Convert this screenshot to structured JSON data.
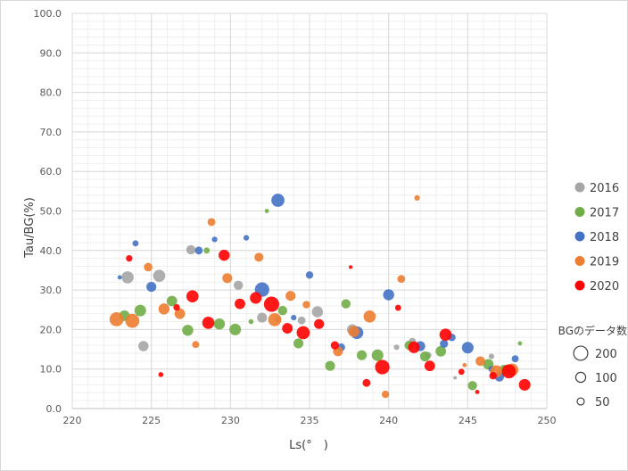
{
  "chart_data": {
    "type": "scatter",
    "xlabel": "Ls(°　)",
    "ylabel": "Tau/BG(%)",
    "xlim": [
      220,
      250
    ],
    "ylim": [
      0,
      100
    ],
    "x_ticks": [
      "220",
      "225",
      "230",
      "235",
      "240",
      "245",
      "250"
    ],
    "y_ticks": [
      "0.0",
      "10.0",
      "20.0",
      "30.0",
      "40.0",
      "50.0",
      "60.0",
      "70.0",
      "80.0",
      "90.0",
      "100.0"
    ],
    "grid": true,
    "legend_position": "right",
    "size_legend": {
      "title": "BGのデータ数",
      "entries": [
        {
          "label": "200",
          "value": 200
        },
        {
          "label": "100",
          "value": 100
        },
        {
          "label": "50",
          "value": 50
        }
      ]
    },
    "series": [
      {
        "name": "2016",
        "color": "#a5a5a5",
        "points": [
          [
            223.5,
            33.2,
            120
          ],
          [
            224.5,
            15.8,
            85
          ],
          [
            225.5,
            33.6,
            120
          ],
          [
            227.5,
            40.2,
            70
          ],
          [
            230.5,
            31.2,
            70
          ],
          [
            232,
            23,
            80
          ],
          [
            233,
            22.5,
            30
          ],
          [
            234.5,
            22.3,
            50
          ],
          [
            235.5,
            24.5,
            100
          ],
          [
            237.7,
            20,
            90
          ],
          [
            240.5,
            15.5,
            25
          ],
          [
            241.5,
            17,
            40
          ],
          [
            242.5,
            13.5,
            35
          ],
          [
            244.2,
            7.8,
            10
          ],
          [
            246.5,
            13.2,
            25
          ]
        ]
      },
      {
        "name": "2017",
        "color": "#70ad47",
        "points": [
          [
            223.3,
            23.5,
            90
          ],
          [
            224.3,
            24.8,
            110
          ],
          [
            226.3,
            27.2,
            90
          ],
          [
            227.3,
            19.8,
            100
          ],
          [
            228.5,
            40,
            30
          ],
          [
            229.3,
            21.4,
            100
          ],
          [
            230.3,
            20,
            110
          ],
          [
            231.3,
            22,
            20
          ],
          [
            232.3,
            50,
            15
          ],
          [
            233.3,
            24.8,
            70
          ],
          [
            234.3,
            16.5,
            80
          ],
          [
            236.3,
            10.8,
            80
          ],
          [
            237.3,
            26.5,
            70
          ],
          [
            238.3,
            13.5,
            80
          ],
          [
            239.3,
            13.5,
            110
          ],
          [
            241.3,
            16,
            70
          ],
          [
            242.3,
            13.2,
            80
          ],
          [
            243.3,
            14.5,
            90
          ],
          [
            245.3,
            5.8,
            70
          ],
          [
            246.3,
            11.2,
            90
          ],
          [
            247.3,
            9.8,
            80
          ],
          [
            248.3,
            16.5,
            15
          ]
        ]
      },
      {
        "name": "2018",
        "color": "#4472c4",
        "points": [
          [
            223,
            33.2,
            15
          ],
          [
            224,
            41.8,
            30
          ],
          [
            225,
            30.8,
            80
          ],
          [
            228,
            40,
            50
          ],
          [
            229,
            42.8,
            25
          ],
          [
            231,
            43.2,
            25
          ],
          [
            232,
            30.1,
            170
          ],
          [
            233,
            52.7,
            140
          ],
          [
            234,
            23,
            25
          ],
          [
            235,
            33.8,
            45
          ],
          [
            237,
            15.5,
            50
          ],
          [
            238,
            19.2,
            130
          ],
          [
            240,
            28.8,
            100
          ],
          [
            242,
            15.8,
            80
          ],
          [
            243.5,
            16.4,
            55
          ],
          [
            244,
            18,
            45
          ],
          [
            245,
            15.4,
            110
          ],
          [
            246.5,
            10,
            30
          ],
          [
            247,
            8,
            70
          ],
          [
            248,
            12.6,
            40
          ]
        ]
      },
      {
        "name": "2019",
        "color": "#ed7d31",
        "points": [
          [
            222.8,
            22.6,
            160
          ],
          [
            223.8,
            22.2,
            160
          ],
          [
            224.8,
            35.8,
            60
          ],
          [
            225.8,
            25.2,
            100
          ],
          [
            226.8,
            24,
            90
          ],
          [
            227.8,
            16.2,
            40
          ],
          [
            228.8,
            47.2,
            50
          ],
          [
            229.8,
            33,
            80
          ],
          [
            231.8,
            38.3,
            65
          ],
          [
            232.8,
            22.5,
            140
          ],
          [
            233.8,
            28.5,
            80
          ],
          [
            234.8,
            26.3,
            45
          ],
          [
            236.8,
            14.5,
            80
          ],
          [
            237.8,
            19.5,
            100
          ],
          [
            238.8,
            23.3,
            120
          ],
          [
            239.8,
            3.6,
            45
          ],
          [
            240.8,
            32.8,
            50
          ],
          [
            241.8,
            53.3,
            25
          ],
          [
            244.8,
            11,
            15
          ],
          [
            245.8,
            12,
            75
          ],
          [
            246.8,
            9.4,
            120
          ],
          [
            247.8,
            9.8,
            130
          ]
        ]
      },
      {
        "name": "2020",
        "color": "#ff0000",
        "points": [
          [
            223.6,
            38,
            35
          ],
          [
            225.6,
            8.6,
            20
          ],
          [
            226.6,
            25.6,
            35
          ],
          [
            227.6,
            28.4,
            120
          ],
          [
            228.6,
            21.7,
            120
          ],
          [
            229.6,
            38.8,
            100
          ],
          [
            230.6,
            26.5,
            90
          ],
          [
            231.6,
            28,
            110
          ],
          [
            232.6,
            26.4,
            190
          ],
          [
            233.6,
            20.3,
            90
          ],
          [
            234.6,
            19.2,
            140
          ],
          [
            235.6,
            21.4,
            80
          ],
          [
            236.6,
            16,
            55
          ],
          [
            237.6,
            35.8,
            12
          ],
          [
            238.6,
            6.5,
            50
          ],
          [
            239.6,
            10.5,
            170
          ],
          [
            240.6,
            25.5,
            30
          ],
          [
            241.6,
            15.5,
            110
          ],
          [
            242.6,
            10.8,
            90
          ],
          [
            243.6,
            18.7,
            120
          ],
          [
            244.6,
            9.3,
            30
          ],
          [
            245.6,
            4.2,
            15
          ],
          [
            246.6,
            8.3,
            45
          ],
          [
            247.6,
            9.4,
            160
          ],
          [
            248.6,
            6,
            110
          ]
        ]
      }
    ]
  }
}
